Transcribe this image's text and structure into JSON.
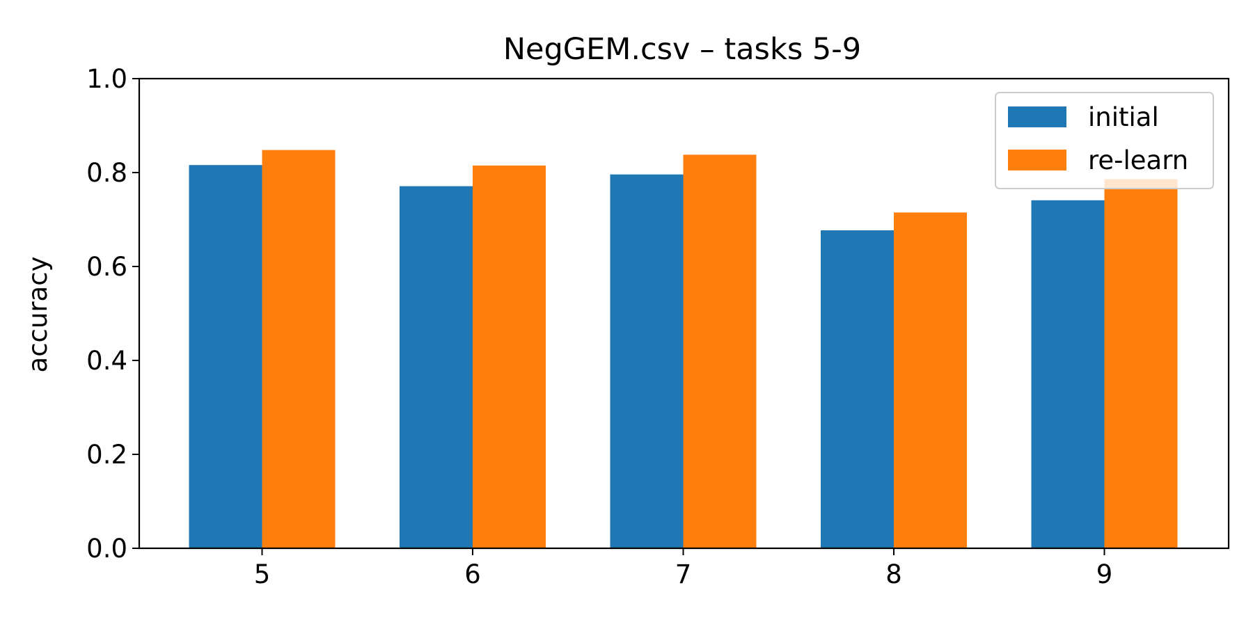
{
  "chart_data": {
    "type": "bar",
    "title": "NegGEM.csv – tasks 5-9",
    "xlabel": "",
    "ylabel": "accuracy",
    "categories": [
      "5",
      "6",
      "7",
      "8",
      "9"
    ],
    "series": [
      {
        "name": "initial",
        "color": "#1f77b4",
        "values": [
          0.816,
          0.771,
          0.796,
          0.677,
          0.741
        ]
      },
      {
        "name": "re-learn",
        "color": "#ff7f0e",
        "values": [
          0.848,
          0.815,
          0.838,
          0.715,
          0.786
        ]
      }
    ],
    "ylim": [
      0,
      1.0
    ],
    "yticks": [
      "0.0",
      "0.2",
      "0.4",
      "0.6",
      "0.8",
      "1.0"
    ],
    "grid": false,
    "legend_position": "top-right"
  }
}
